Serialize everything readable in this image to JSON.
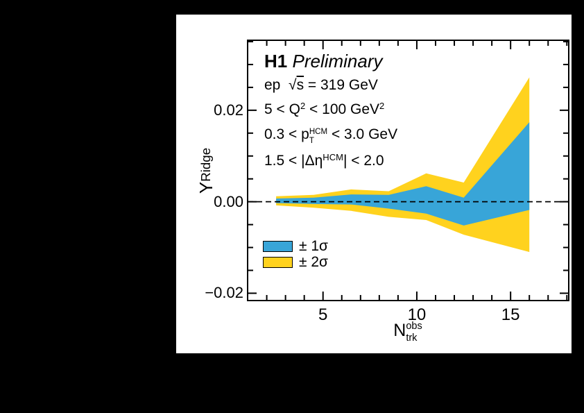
{
  "page": {
    "background": "#000000"
  },
  "canvas": {
    "background": "#ffffff"
  },
  "colors": {
    "band_1sigma": "#38A5D8",
    "band_2sigma": "#FFD21E",
    "frame": "#000000",
    "zero_line": "#000000",
    "text": "#000000"
  },
  "annotations": {
    "lines": [
      {
        "name": "title",
        "segments": [
          {
            "t": "H1",
            "f": "bold"
          },
          {
            "t": " ",
            "f": ""
          },
          {
            "t": "Preliminary",
            "f": "italic"
          }
        ]
      },
      {
        "name": "beam",
        "segments": [
          {
            "t": "ep  ",
            "f": ""
          },
          {
            "t": "√",
            "f": ""
          },
          {
            "t": "s",
            "f": "overline"
          },
          {
            "t": " = 319 GeV",
            "f": ""
          }
        ]
      },
      {
        "name": "q2-range",
        "segments": [
          {
            "t": "5 < Q",
            "f": ""
          },
          {
            "t": "2",
            "f": "sup"
          },
          {
            "t": " < 100 GeV",
            "f": ""
          },
          {
            "t": "2",
            "f": "sup"
          }
        ]
      },
      {
        "name": "pt-range",
        "segments": [
          {
            "t": "0.3 < p",
            "f": ""
          },
          {
            "top": "HCM",
            "bottom": "T",
            "f": "stack"
          },
          {
            "t": " < 3.0 GeV",
            "f": ""
          }
        ]
      },
      {
        "name": "eta-range",
        "segments": [
          {
            "t": "1.5 < |Δη",
            "f": ""
          },
          {
            "t": "HCM",
            "f": "sup"
          },
          {
            "t": "| < 2.0",
            "f": ""
          }
        ]
      }
    ]
  },
  "legend": {
    "items": [
      {
        "label": "± 1σ",
        "color_key": "band_1sigma"
      },
      {
        "label": "± 2σ",
        "color_key": "band_2sigma"
      }
    ]
  },
  "axes": {
    "x_title": {
      "base": "N",
      "top": "obs",
      "bottom": "trk"
    },
    "y_title": {
      "base": "Y",
      "sub": "Ridge"
    },
    "x_tick_labels": [
      "5",
      "10",
      "15"
    ],
    "y_tick_labels": [
      "0.02",
      "0.00",
      "−0.02"
    ]
  },
  "chart_data": {
    "type": "area",
    "title": "H1 Preliminary",
    "annotations_text": [
      "H1 Preliminary",
      "ep √s = 319 GeV",
      "5 < Q² < 100 GeV²",
      "0.3 < p_T^HCM < 3.0 GeV",
      "1.5 < |Δη^HCM| < 2.0"
    ],
    "xlabel": "N_trk^obs",
    "ylabel": "Y_Ridge",
    "xlim": [
      0.98,
      18.1
    ],
    "ylim": [
      -0.0216,
      0.0353
    ],
    "x_major_ticks": [
      5,
      10,
      15
    ],
    "x_minor_ticks": [
      2,
      3,
      4,
      6,
      7,
      8,
      9,
      11,
      12,
      13,
      14,
      16,
      17,
      18
    ],
    "y_major_ticks": [
      0.02,
      0.0,
      -0.02
    ],
    "y_minor_ticks": [
      -0.015,
      -0.01,
      -0.005,
      0.005,
      0.01,
      0.015,
      0.025,
      0.03,
      0.035
    ],
    "grid": false,
    "legend_position": "lower-left",
    "zero_line": 0,
    "x": [
      2.5,
      4.5,
      6.5,
      8.5,
      10.5,
      12.5,
      16
    ],
    "series": [
      {
        "name": "band2_upper",
        "label": "+2σ",
        "values": [
          0.0012,
          0.0015,
          0.0027,
          0.0023,
          0.0062,
          0.0042,
          0.0272
        ]
      },
      {
        "name": "band1_upper",
        "label": "+1σ",
        "values": [
          0.0007,
          0.0009,
          0.0016,
          0.0015,
          0.0034,
          0.0009,
          0.0174
        ]
      },
      {
        "name": "band1_lower",
        "label": "-1σ",
        "values": [
          -0.0003,
          -0.0005,
          -0.0006,
          -0.0015,
          -0.0026,
          -0.0052,
          -0.0018
        ]
      },
      {
        "name": "band2_lower",
        "label": "-2σ",
        "values": [
          -0.0008,
          -0.0013,
          -0.002,
          -0.0033,
          -0.004,
          -0.0072,
          -0.011
        ]
      }
    ]
  }
}
